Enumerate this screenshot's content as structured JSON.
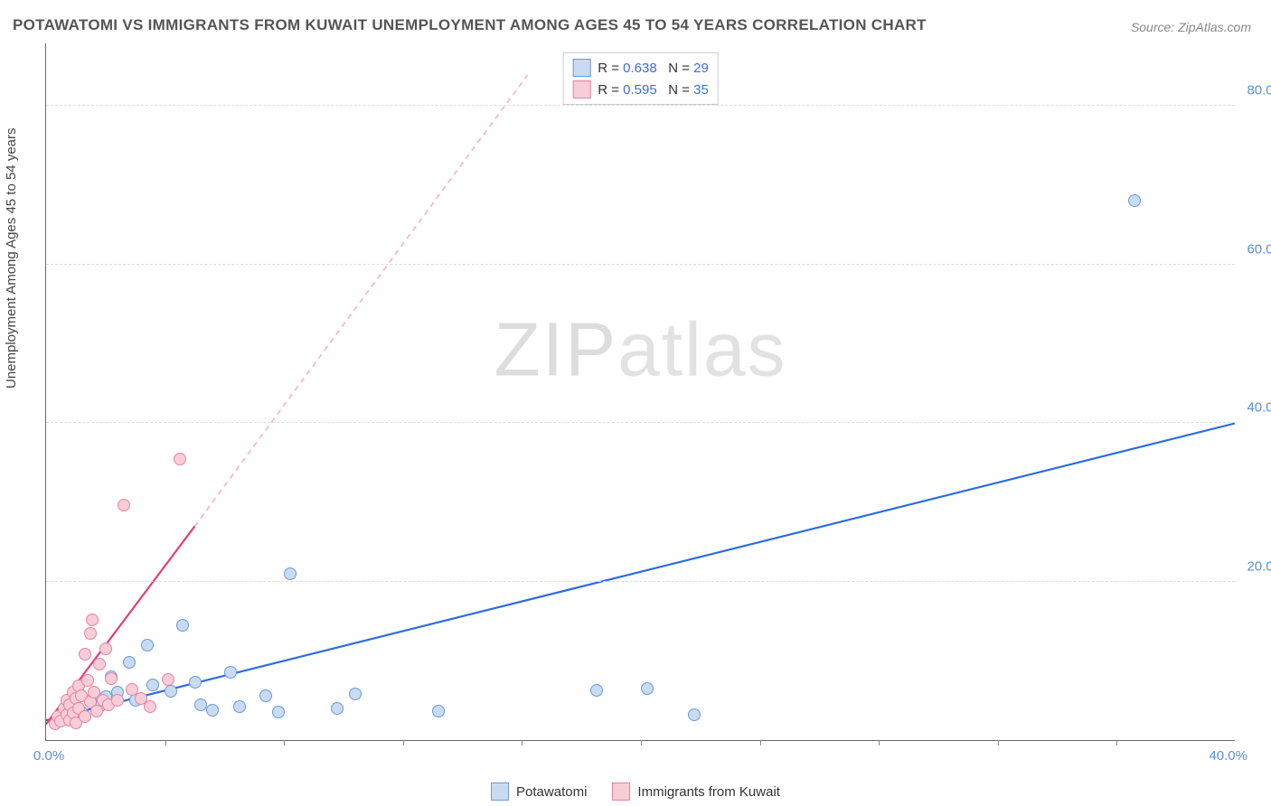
{
  "title": "POTAWATOMI VS IMMIGRANTS FROM KUWAIT UNEMPLOYMENT AMONG AGES 45 TO 54 YEARS CORRELATION CHART",
  "source": "Source: ZipAtlas.com",
  "ylabel": "Unemployment Among Ages 45 to 54 years",
  "watermark_a": "ZIP",
  "watermark_b": "atlas",
  "chart": {
    "type": "scatter",
    "background_color": "#ffffff",
    "grid_color": "#dddddd",
    "axis_color": "#666666",
    "xlim": [
      0,
      40
    ],
    "ylim": [
      0,
      88
    ],
    "ytick_positions": [
      20,
      40,
      60,
      80
    ],
    "ytick_labels": [
      "20.0%",
      "40.0%",
      "60.0%",
      "80.0%"
    ],
    "xtick_left": "0.0%",
    "xtick_right": "40.0%",
    "xtick_marks": [
      4,
      8,
      12,
      16,
      20,
      24,
      28,
      32,
      36
    ],
    "ytick_color": "#5b8dd6",
    "xtick_color": "#5b8dd6",
    "point_radius": 7,
    "point_border_width": 1.2,
    "label_fontsize": 15,
    "title_fontsize": 17,
    "title_color": "#555555"
  },
  "series": [
    {
      "name": "Potawatomi",
      "fill_color": "#c9dbf3",
      "border_color": "#6a9ad8",
      "r_label": "R = ",
      "r_value": "0.638",
      "n_label": "N = ",
      "n_value": "29",
      "trend": {
        "x1": 0,
        "y1": 2.5,
        "x2": 40,
        "y2": 40,
        "color": "#2d6cdf",
        "width": 2.2,
        "dash": "none",
        "extend_x2": 40,
        "extend_y2": 40
      },
      "points": [
        [
          0.5,
          3
        ],
        [
          0.8,
          4
        ],
        [
          1.2,
          3.5
        ],
        [
          1.5,
          5
        ],
        [
          1.8,
          4.2
        ],
        [
          2.0,
          5.5
        ],
        [
          2.2,
          8
        ],
        [
          2.4,
          6
        ],
        [
          2.8,
          9.8
        ],
        [
          3.0,
          5
        ],
        [
          3.4,
          12
        ],
        [
          3.6,
          7
        ],
        [
          4.2,
          6.2
        ],
        [
          4.6,
          14.5
        ],
        [
          5.0,
          7.3
        ],
        [
          5.2,
          4.5
        ],
        [
          5.6,
          3.8
        ],
        [
          6.2,
          8.5
        ],
        [
          6.5,
          4.2
        ],
        [
          7.4,
          5.6
        ],
        [
          7.8,
          3.5
        ],
        [
          8.2,
          21.0
        ],
        [
          9.8,
          4.0
        ],
        [
          10.4,
          5.8
        ],
        [
          13.2,
          3.6
        ],
        [
          18.5,
          6.3
        ],
        [
          20.2,
          6.5
        ],
        [
          21.8,
          3.2
        ],
        [
          36.6,
          68.0
        ]
      ]
    },
    {
      "name": "Immigrants from Kuwait",
      "fill_color": "#f7cdd8",
      "border_color": "#e484a3",
      "r_label": "R = ",
      "r_value": "0.595",
      "n_label": "N = ",
      "n_value": "35",
      "trend": {
        "x1": 0,
        "y1": 2.0,
        "x2": 5.0,
        "y2": 27,
        "color": "#e23d7b",
        "width": 2.2,
        "dash": "none",
        "extend_x2": 16.2,
        "extend_y2": 84,
        "extend_dash": "6,5",
        "extend_color": "#f3b8cb"
      },
      "points": [
        [
          0.3,
          2.0
        ],
        [
          0.4,
          3.0
        ],
        [
          0.5,
          2.4
        ],
        [
          0.6,
          4.0
        ],
        [
          0.7,
          3.2
        ],
        [
          0.7,
          5.0
        ],
        [
          0.8,
          2.5
        ],
        [
          0.8,
          4.5
        ],
        [
          0.9,
          6.0
        ],
        [
          0.9,
          3.4
        ],
        [
          1.0,
          5.2
        ],
        [
          1.0,
          2.2
        ],
        [
          1.1,
          6.8
        ],
        [
          1.1,
          4.0
        ],
        [
          1.2,
          5.6
        ],
        [
          1.3,
          3.0
        ],
        [
          1.3,
          10.8
        ],
        [
          1.4,
          7.5
        ],
        [
          1.5,
          4.8
        ],
        [
          1.5,
          13.5
        ],
        [
          1.55,
          15.2
        ],
        [
          1.6,
          6.0
        ],
        [
          1.7,
          3.6
        ],
        [
          1.8,
          9.6
        ],
        [
          1.9,
          5.0
        ],
        [
          2.0,
          11.5
        ],
        [
          2.1,
          4.4
        ],
        [
          2.2,
          7.8
        ],
        [
          2.4,
          5.0
        ],
        [
          2.6,
          29.6
        ],
        [
          2.9,
          6.4
        ],
        [
          3.2,
          5.2
        ],
        [
          3.5,
          4.2
        ],
        [
          4.1,
          7.6
        ],
        [
          4.5,
          35.5
        ]
      ]
    }
  ],
  "bottom_legend": [
    {
      "label": "Potawatomi",
      "fill": "#c9dbf3",
      "border": "#6a9ad8"
    },
    {
      "label": "Immigrants from Kuwait",
      "fill": "#f7cdd8",
      "border": "#e484a3"
    }
  ]
}
